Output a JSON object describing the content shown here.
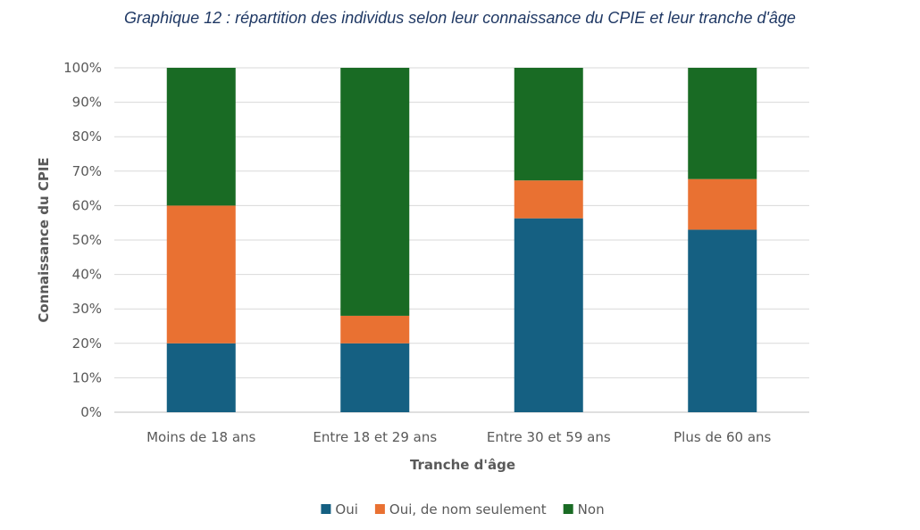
{
  "chart_data": {
    "type": "bar",
    "stacked": true,
    "percent": true,
    "title": "Graphique 12 : répartition des individus selon leur connaissance du CPIE et leur tranche d'âge",
    "xlabel": "Tranche d'âge",
    "ylabel": "Connaissance du CPIE",
    "ylim": [
      0,
      100
    ],
    "yticks": [
      "0%",
      "10%",
      "20%",
      "30%",
      "40%",
      "50%",
      "60%",
      "70%",
      "80%",
      "90%",
      "100%"
    ],
    "categories": [
      "Moins de 18 ans",
      "Entre 18 et 29 ans",
      "Entre 30 et 59 ans",
      "Plus de 60 ans"
    ],
    "series": [
      {
        "name": "Oui",
        "values": [
          20,
          20,
          56.3,
          53
        ],
        "color": "#156082"
      },
      {
        "name": "Oui, de nom seulement",
        "values": [
          40,
          8,
          11,
          14.7
        ],
        "color": "#e97132"
      },
      {
        "name": "Non",
        "values": [
          40,
          72,
          32.7,
          32.3
        ],
        "color": "#196b24"
      }
    ],
    "grid": true,
    "legend": "bottom"
  }
}
